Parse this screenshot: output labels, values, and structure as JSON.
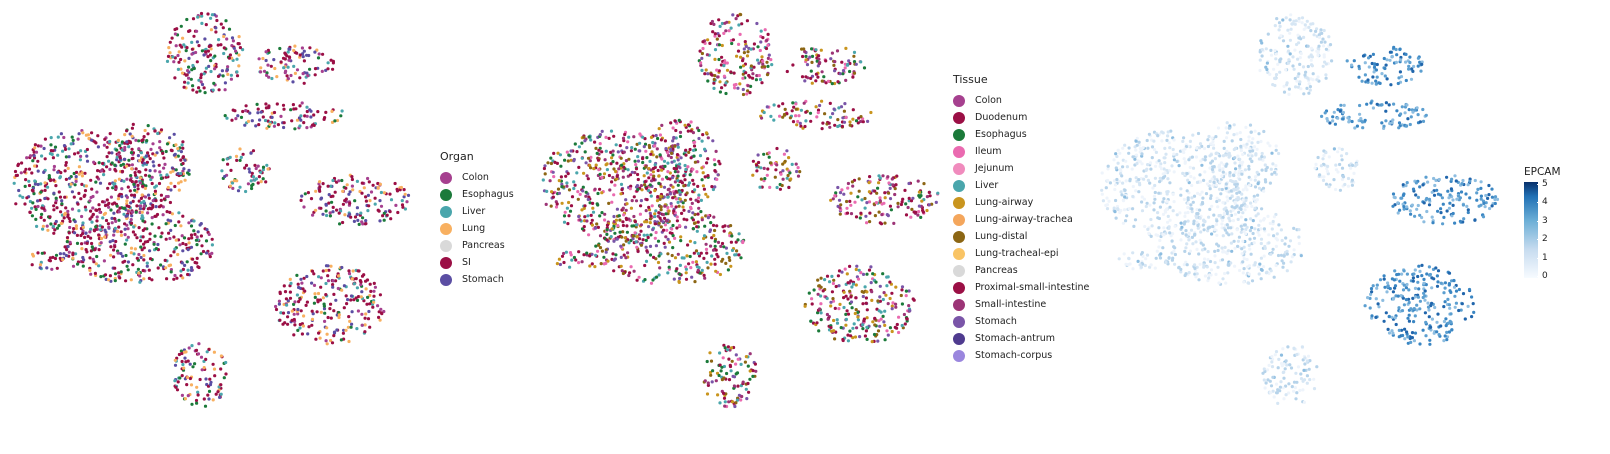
{
  "panels": [
    {
      "legend_title": "Organ",
      "categories": [
        {
          "label": "Colon",
          "color": "#a6408f"
        },
        {
          "label": "Esophagus",
          "color": "#1b7a3a"
        },
        {
          "label": "Liver",
          "color": "#4aa6ac"
        },
        {
          "label": "Lung",
          "color": "#f8b060"
        },
        {
          "label": "Pancreas",
          "color": "#d9d9d9"
        },
        {
          "label": "SI",
          "color": "#9b0f45"
        },
        {
          "label": "Stomach",
          "color": "#5b4ea3"
        }
      ]
    },
    {
      "legend_title": "Tissue",
      "categories": [
        {
          "label": "Colon",
          "color": "#a6408f"
        },
        {
          "label": "Duodenum",
          "color": "#9b0f45"
        },
        {
          "label": "Esophagus",
          "color": "#1b7a3a"
        },
        {
          "label": "Ileum",
          "color": "#ea6ab0"
        },
        {
          "label": "Jejunum",
          "color": "#f08bbd"
        },
        {
          "label": "Liver",
          "color": "#4aa6ac"
        },
        {
          "label": "Lung-airway",
          "color": "#c9951e"
        },
        {
          "label": "Lung-airway-trachea",
          "color": "#f4a65c"
        },
        {
          "label": "Lung-distal",
          "color": "#8c6614"
        },
        {
          "label": "Lung-tracheal-epi",
          "color": "#f9c465"
        },
        {
          "label": "Pancreas",
          "color": "#d9d9d9"
        },
        {
          "label": "Proximal-small-intestine",
          "color": "#9b0f45"
        },
        {
          "label": "Small-intestine",
          "color": "#9c3476"
        },
        {
          "label": "Stomach",
          "color": "#7a55a8"
        },
        {
          "label": "Stomach-antrum",
          "color": "#4f3b8f"
        },
        {
          "label": "Stomach-corpus",
          "color": "#9a86de"
        }
      ]
    },
    {
      "colorbar_title": "EPCAM",
      "colorbar_ticks": [
        "0",
        "1",
        "2",
        "3",
        "4",
        "5"
      ],
      "colorbar_range": [
        0,
        5
      ]
    }
  ],
  "chart_data": {
    "type": "scatter",
    "title": "",
    "xlabel": "",
    "ylabel": "",
    "grid": false,
    "note_series": [
      "Organ",
      "Tissue",
      "EPCAM"
    ]
  }
}
